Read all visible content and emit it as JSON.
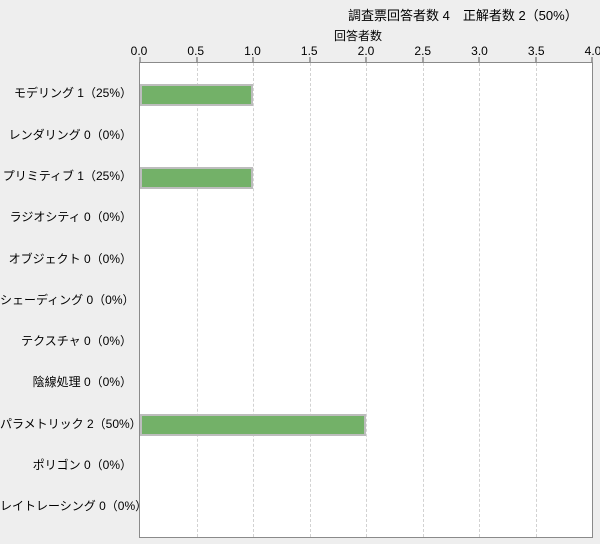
{
  "window": {
    "background": "#eeeeee"
  },
  "colors": {
    "background": "#eeeeee",
    "plot_background": "#ffffff",
    "plot_border": "#8a8a8a",
    "gridline": "#d2d2d2",
    "tick": "#545454",
    "bar_fill": "#73b168",
    "bar_border": "#bdbdbd",
    "text": "#000000"
  },
  "chart_data": {
    "type": "bar",
    "orientation": "horizontal",
    "title": "調査票回答者数 4　正解者数 2（50%）",
    "xlabel": "回答者数",
    "ylabel": "",
    "xlim": [
      0,
      4
    ],
    "xticks": [
      0,
      0.5,
      1,
      1.5,
      2,
      2.5,
      3,
      3.5,
      4
    ],
    "xtick_labels": [
      "0.0",
      "0.5",
      "1.0",
      "1.5",
      "2.0",
      "2.5",
      "3.0",
      "3.5",
      "4.0"
    ],
    "grid": "vertical-dashed",
    "legend": "none",
    "categories": [
      "モデリング 1（25%）",
      "レンダリング 0（0%）",
      "プリミティブ 1（25%）",
      "ラジオシティ 0（0%）",
      "オブジェクト 0（0%）",
      "シェーディング 0（0%）",
      "テクスチャ 0（0%）",
      "陰線処理 0（0%）",
      "パラメトリック 2（50%）",
      "ポリゴン 0（0%）",
      "レイトレーシング 0（0%）"
    ],
    "values": [
      1,
      0,
      1,
      0,
      0,
      0,
      0,
      0,
      2,
      0,
      0
    ]
  }
}
